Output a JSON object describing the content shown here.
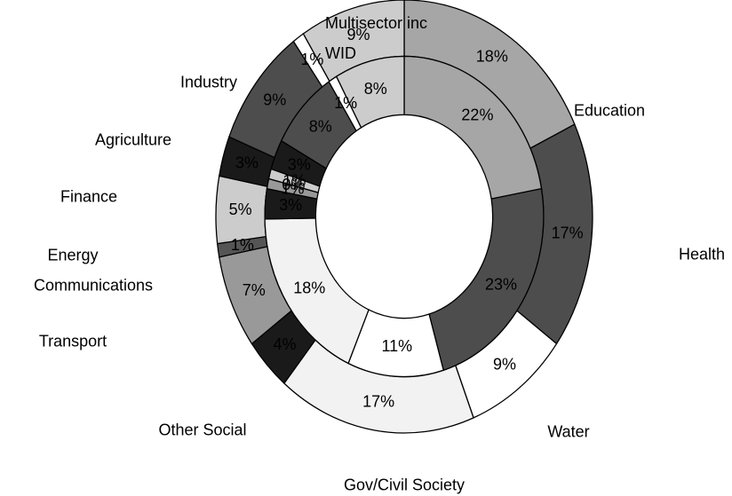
{
  "chart_data": {
    "type": "donut",
    "categories": [
      "Education",
      "Health",
      "Water",
      "Gov/Civil Society",
      "Other Social",
      "Transport",
      "Communications",
      "Energy",
      "Finance",
      "Agriculture",
      "Industry",
      "Multisector inc WID"
    ],
    "colors": [
      "#a6a6a6",
      "#4d4d4d",
      "#ffffff",
      "#f2f2f2",
      "#1a1a1a",
      "#999999",
      "#555555",
      "#cccccc",
      "#1a1a1a",
      "#4d4d4d",
      "#ffffff",
      "#cccccc"
    ],
    "series": [
      {
        "values": [
          18,
          17,
          9,
          17,
          4,
          7,
          1,
          5,
          3,
          9,
          1,
          9
        ],
        "value_labels": [
          "18%",
          "17%",
          "9%",
          "17%",
          "4%",
          "7%",
          "1%",
          "5%",
          "3%",
          "9%",
          "1%",
          "9%"
        ]
      },
      {
        "values": [
          22,
          23,
          11,
          18,
          3,
          1,
          0,
          1,
          3,
          8,
          1,
          8
        ],
        "value_labels": [
          "22%",
          "23%",
          "11%",
          "18%",
          "3%",
          "1%",
          "0%",
          "1%",
          "3%",
          "8%",
          "1%",
          "8%"
        ]
      }
    ]
  }
}
